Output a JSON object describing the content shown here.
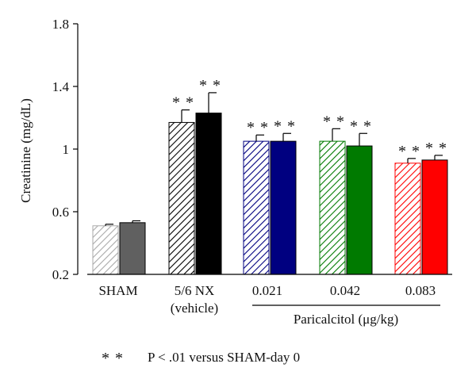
{
  "chart_data": {
    "type": "bar",
    "ylabel": "Creatinine (mg/dL)",
    "ylim": [
      0.2,
      1.8
    ],
    "yticks": [
      0.2,
      0.6,
      1,
      1.4,
      1.8
    ],
    "ytick_labels": [
      "0.2",
      "0.6",
      "1",
      "1.4",
      "1.8"
    ],
    "grid": false,
    "groups": [
      {
        "label_lines": [
          "SHAM"
        ],
        "color": "#a9a9a9",
        "solid_color": "#606060",
        "bars": [
          {
            "value": 0.51,
            "error": 0.01,
            "significance": ""
          },
          {
            "value": 0.53,
            "error": 0.012,
            "significance": ""
          }
        ]
      },
      {
        "label_lines": [
          "5/6 NX",
          "(vehicle)"
        ],
        "color": "#000000",
        "solid_color": "#000000",
        "bars": [
          {
            "value": 1.17,
            "error": 0.08,
            "significance": "**"
          },
          {
            "value": 1.23,
            "error": 0.13,
            "significance": "**"
          }
        ]
      },
      {
        "label_lines": [
          "0.021"
        ],
        "color": "#000080",
        "solid_color": "#000080",
        "bars": [
          {
            "value": 1.05,
            "error": 0.04,
            "significance": "**"
          },
          {
            "value": 1.05,
            "error": 0.05,
            "significance": "**"
          }
        ]
      },
      {
        "label_lines": [
          "0.042"
        ],
        "color": "#007a00",
        "solid_color": "#007a00",
        "bars": [
          {
            "value": 1.05,
            "error": 0.08,
            "significance": "**"
          },
          {
            "value": 1.02,
            "error": 0.08,
            "significance": "**"
          }
        ]
      },
      {
        "label_lines": [
          "0.083"
        ],
        "color": "#ff0000",
        "solid_color": "#ff0000",
        "bars": [
          {
            "value": 0.91,
            "error": 0.03,
            "significance": "**"
          },
          {
            "value": 0.93,
            "error": 0.03,
            "significance": "**"
          }
        ]
      }
    ],
    "bracket_label": "Paricalcitol (μg/kg)",
    "footnote": {
      "symbol": "**",
      "text": "P < .01 versus SHAM-day 0"
    }
  }
}
